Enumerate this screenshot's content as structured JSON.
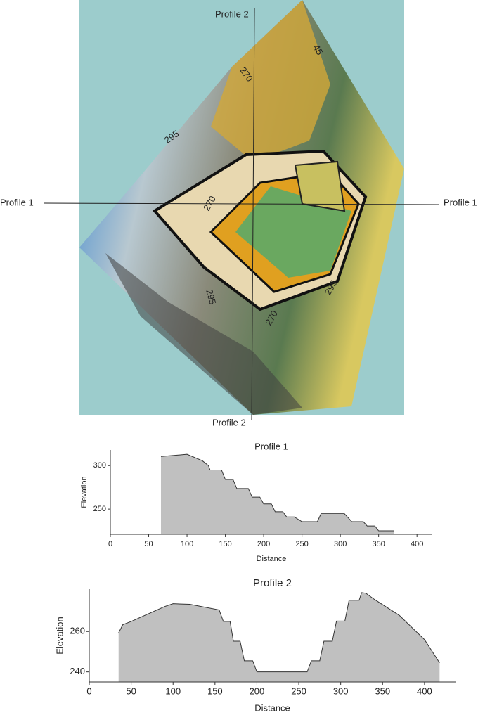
{
  "map": {
    "profile_labels": [
      "Profile 1",
      "Profile 1",
      "Profile 2",
      "Profile 2"
    ],
    "contour_labels": [
      "45",
      "270",
      "295",
      "270",
      "295",
      "295",
      "270"
    ]
  },
  "chart_data": [
    {
      "type": "area",
      "title": "Profile 1",
      "xlabel": "Distance",
      "ylabel": "Elevation",
      "color": "#c0c0c0",
      "x": [
        66,
        100,
        120,
        128,
        130,
        145,
        150,
        160,
        165,
        180,
        185,
        195,
        200,
        210,
        215,
        225,
        230,
        240,
        250,
        270,
        275,
        305,
        315,
        330,
        335,
        345,
        350,
        370
      ],
      "values": [
        310.5,
        313,
        305.6,
        300,
        295,
        295,
        284,
        284,
        273.6,
        273.6,
        263.7,
        263.7,
        256,
        256,
        247,
        247,
        241,
        241,
        235.5,
        235.5,
        245,
        245,
        235.5,
        235.5,
        230.6,
        230.6,
        225,
        225
      ],
      "xlim": [
        0,
        420
      ],
      "ylim": [
        221,
        318
      ],
      "xticks": [
        0,
        50,
        100,
        150,
        200,
        250,
        300,
        350,
        400
      ],
      "yticks": [
        250,
        300
      ]
    },
    {
      "type": "area",
      "title": "Profile 2",
      "xlabel": "Distance",
      "ylabel": "Elevation",
      "color": "#c0c0c0",
      "x": [
        35,
        40,
        50,
        90,
        100,
        120,
        155,
        160,
        168,
        172,
        180,
        185,
        195,
        200,
        260,
        265,
        275,
        280,
        290,
        295,
        305,
        310,
        322,
        325,
        330,
        340,
        370,
        400,
        418
      ],
      "values": [
        259.3,
        263.4,
        265,
        272.4,
        273.8,
        273.5,
        270.7,
        265,
        265,
        255.2,
        255.2,
        245.5,
        245.5,
        240,
        240,
        245.5,
        245.5,
        255.2,
        255.2,
        265.2,
        265.2,
        275.5,
        275.5,
        279.3,
        279,
        276,
        268,
        256,
        244.5
      ],
      "xlim": [
        0,
        437
      ],
      "ylim": [
        235,
        281
      ],
      "xticks": [
        0,
        50,
        100,
        150,
        200,
        250,
        300,
        350,
        400
      ],
      "yticks": [
        240,
        260
      ]
    }
  ]
}
